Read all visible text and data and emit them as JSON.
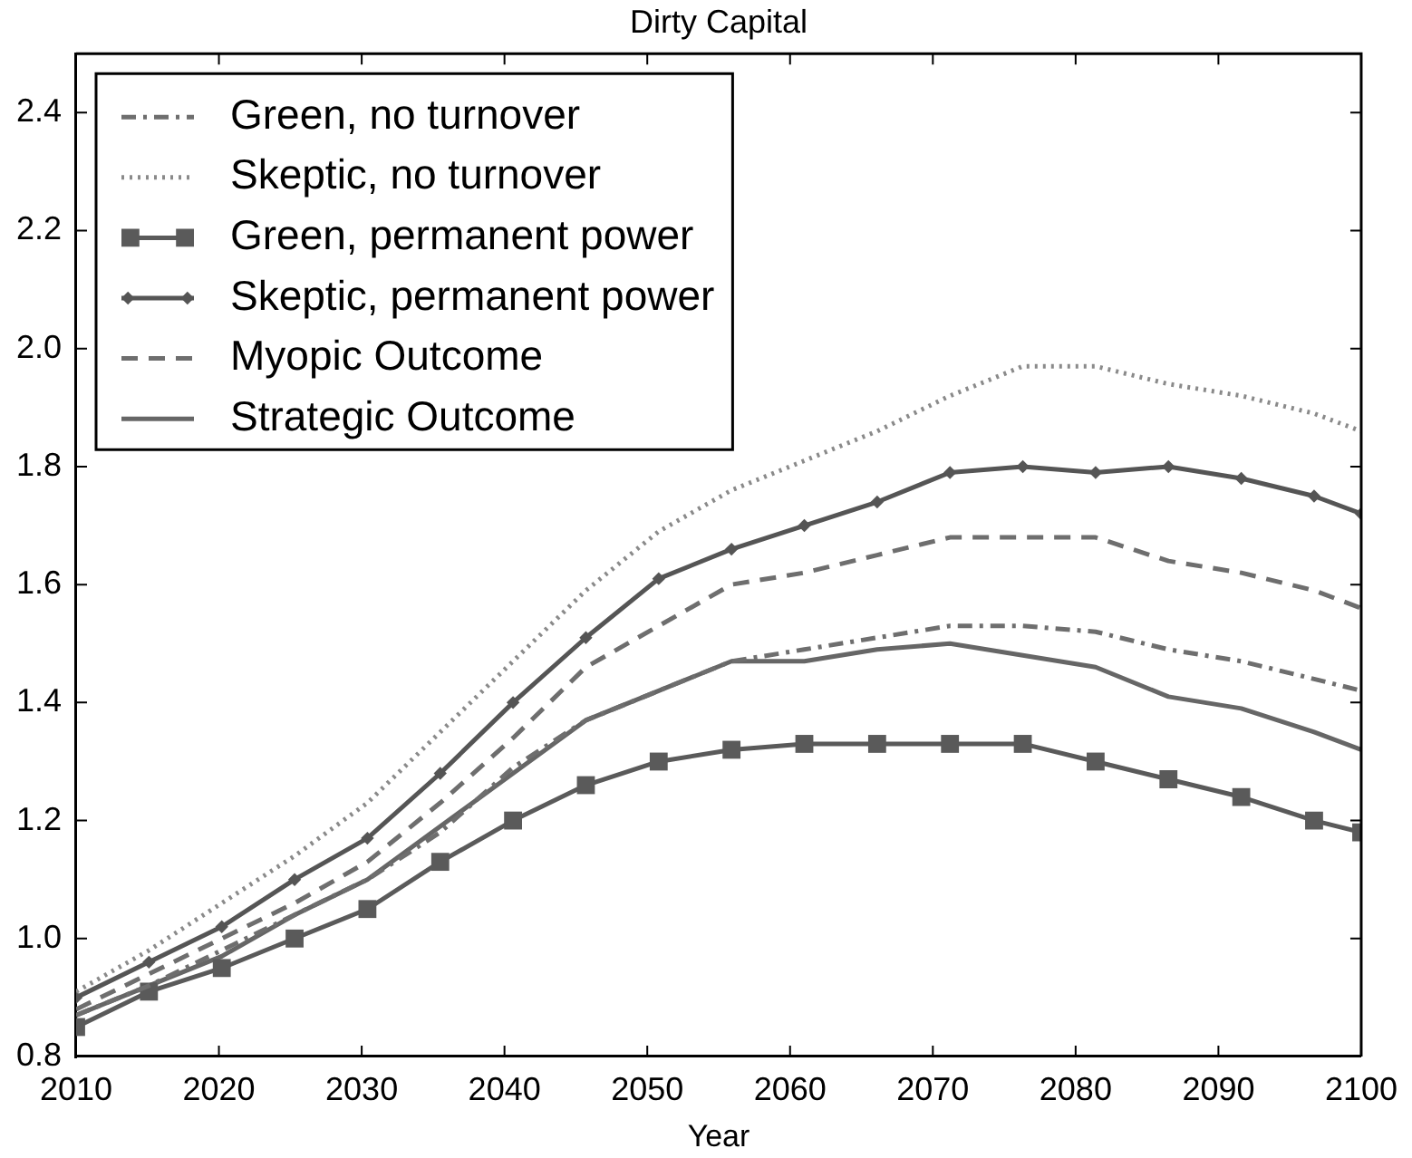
{
  "chart_data": {
    "type": "line",
    "title": "Dirty Capital",
    "xlabel": "Year",
    "x": [
      2010,
      2015.1,
      2020.2,
      2025.3,
      2030.4,
      2035.5,
      2040.6,
      2045.7,
      2050.8,
      2055.9,
      2061,
      2066.1,
      2071.2,
      2076.3,
      2081.4,
      2086.5,
      2091.6,
      2096.7,
      2100
    ],
    "xlim": [
      2010,
      2100
    ],
    "xticks": [
      2010,
      2020,
      2030,
      2040,
      2050,
      2060,
      2070,
      2080,
      2090,
      2100
    ],
    "ylim": [
      0.8,
      2.5
    ],
    "yticks": [
      0.8,
      {
        "value": 1,
        "label": "1.0"
      },
      1.2,
      1.4,
      1.6,
      1.8,
      {
        "value": 2,
        "label": "2.0"
      },
      2.2,
      2.4
    ],
    "grid": false,
    "legend": "top left",
    "series": [
      {
        "name": "Green, no turnover",
        "color": "#6e6e6e",
        "line_style": "dashdot",
        "marker": "none",
        "values": [
          0.87,
          0.92,
          0.98,
          1.04,
          1.1,
          1.18,
          1.29,
          1.37,
          1.42,
          1.47,
          1.49,
          1.51,
          1.53,
          1.53,
          1.52,
          1.49,
          1.47,
          1.44,
          1.42
        ]
      },
      {
        "name": "Skeptic, no turnover",
        "color": "#8a8a8a",
        "line_style": "dotted",
        "marker": "none",
        "values": [
          0.91,
          0.98,
          1.06,
          1.14,
          1.23,
          1.35,
          1.47,
          1.59,
          1.69,
          1.76,
          1.81,
          1.86,
          1.92,
          1.97,
          1.97,
          1.94,
          1.92,
          1.89,
          1.86
        ]
      },
      {
        "name": "Green, permanent power",
        "color": "#5a5a5a",
        "line_style": "solid",
        "marker": "square",
        "values": [
          0.85,
          0.91,
          0.95,
          1.0,
          1.05,
          1.13,
          1.2,
          1.26,
          1.3,
          1.32,
          1.33,
          1.33,
          1.33,
          1.33,
          1.3,
          1.27,
          1.24,
          1.2,
          1.18
        ]
      },
      {
        "name": "Skeptic, permanent power",
        "color": "#555555",
        "line_style": "solid",
        "marker": "diamond",
        "values": [
          0.9,
          0.96,
          1.02,
          1.1,
          1.17,
          1.28,
          1.4,
          1.51,
          1.61,
          1.66,
          1.7,
          1.74,
          1.79,
          1.8,
          1.79,
          1.8,
          1.78,
          1.75,
          1.72
        ]
      },
      {
        "name": "Myopic Outcome",
        "color": "#6e6e6e",
        "line_style": "dashed",
        "marker": "none",
        "values": [
          0.88,
          0.94,
          1.0,
          1.06,
          1.13,
          1.23,
          1.34,
          1.46,
          1.53,
          1.6,
          1.62,
          1.65,
          1.68,
          1.68,
          1.68,
          1.64,
          1.62,
          1.59,
          1.56
        ]
      },
      {
        "name": "Strategic Outcome",
        "color": "#666666",
        "line_style": "solid",
        "marker": "none",
        "values": [
          0.87,
          0.92,
          0.97,
          1.04,
          1.1,
          1.19,
          1.28,
          1.37,
          1.42,
          1.47,
          1.47,
          1.49,
          1.5,
          1.48,
          1.46,
          1.41,
          1.39,
          1.35,
          1.32
        ]
      }
    ]
  }
}
